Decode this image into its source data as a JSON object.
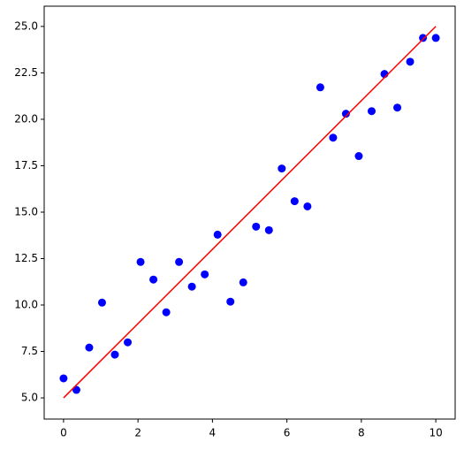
{
  "chart_data": {
    "type": "scatter",
    "xlim": [
      -0.52,
      10.52
    ],
    "ylim": [
      3.86,
      26.09
    ],
    "xticks": [
      0,
      2,
      4,
      6,
      8,
      10
    ],
    "yticks": [
      {
        "value": 5,
        "label": "5.0"
      },
      7.5,
      {
        "value": 10,
        "label": "10.0"
      },
      12.5,
      {
        "value": 15,
        "label": "15.0"
      },
      17.5,
      {
        "value": 20,
        "label": "20.0"
      },
      22.5,
      {
        "value": 25,
        "label": "25.0"
      }
    ],
    "series": [
      {
        "mode": "markers",
        "color": "#0000ff",
        "x": [
          0,
          0.345,
          0.69,
          1.034,
          1.379,
          1.724,
          2.069,
          2.414,
          2.759,
          3.103,
          3.448,
          3.793,
          4.138,
          4.483,
          4.828,
          5.172,
          5.517,
          5.862,
          6.207,
          6.552,
          6.897,
          7.241,
          7.586,
          7.931,
          8.276,
          8.621,
          8.966,
          9.31,
          9.655,
          10
        ],
        "values": [
          6.05,
          5.43,
          7.71,
          10.13,
          7.33,
          7.99,
          12.32,
          11.37,
          9.61,
          12.32,
          10.99,
          11.65,
          13.79,
          10.18,
          11.22,
          14.22,
          14.03,
          17.35,
          15.59,
          15.31,
          21.72,
          19.01,
          20.3,
          18.02,
          20.44,
          22.44,
          20.63,
          23.1,
          24.38,
          24.38
        ]
      },
      {
        "mode": "line",
        "color": "#ff0000",
        "x": [
          0,
          10
        ],
        "values": [
          5,
          25
        ]
      }
    ]
  }
}
